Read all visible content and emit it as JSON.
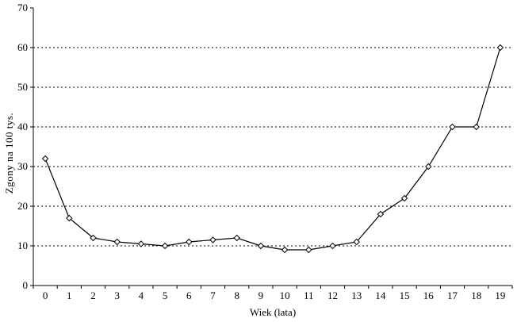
{
  "chart_data": {
    "type": "line",
    "title": "",
    "xlabel": "Wiek (lata)",
    "ylabel": "Zgony na 100 tys.",
    "x": [
      0,
      1,
      2,
      3,
      4,
      5,
      6,
      7,
      8,
      9,
      10,
      11,
      12,
      13,
      14,
      15,
      16,
      17,
      18,
      19
    ],
    "series": [
      {
        "name": "Zgony na 100 tys.",
        "values": [
          32,
          17,
          12,
          11,
          10.5,
          10,
          11,
          11.5,
          12,
          10,
          9,
          9,
          10,
          11,
          18,
          22,
          30,
          40,
          40,
          60
        ]
      }
    ],
    "ylim": [
      0,
      70
    ],
    "ytick_step": 10,
    "grid": "horizontal-dotted",
    "legend": "none",
    "marker": "open-diamond",
    "line_color": "#000000",
    "grid_color": "#000000",
    "axis_color": "#000000",
    "background": "#ffffff"
  }
}
